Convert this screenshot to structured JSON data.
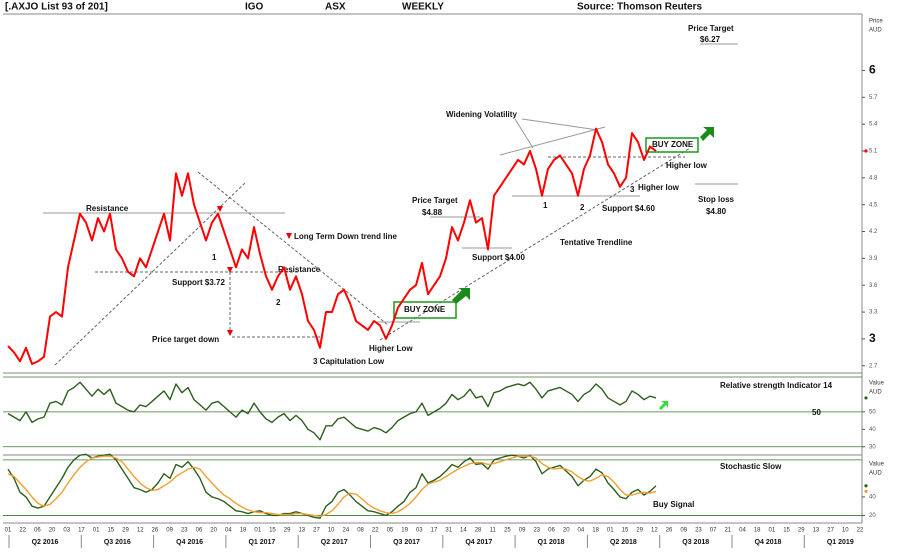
{
  "header": [
    "[.AXJO List 93 of 201]",
    "IGO",
    "ASX",
    "WEEKLY",
    "Source: Thomson Reuters"
  ],
  "x_axis": {
    "day_labels": [
      "01",
      "22",
      "06",
      "20",
      "03",
      "17",
      "01",
      "15",
      "29",
      "12",
      "26",
      "09",
      "23",
      "06",
      "20",
      "04",
      "18",
      "01",
      "15",
      "29",
      "13",
      "27",
      "10",
      "24",
      "08",
      "22",
      "05",
      "19",
      "03",
      "17",
      "31",
      "14",
      "28",
      "11",
      "25",
      "09",
      "23",
      "06",
      "20",
      "04",
      "18",
      "01",
      "15",
      "29",
      "12",
      "26",
      "09",
      "23",
      "07",
      "21",
      "04",
      "18",
      "01",
      "15",
      "29",
      "13",
      "27",
      "10",
      "22"
    ],
    "quarter_labels": [
      "Q2 2016",
      "Q3 2016",
      "Q4 2016",
      "Q1 2017",
      "Q2 2017",
      "Q3 2017",
      "Q4 2017",
      "Q1 2018",
      "Q2 2018",
      "Q3 2018",
      "Q4 2018",
      "Q1 2019"
    ]
  },
  "chart_data": [
    {
      "type": "line",
      "y_label": [
        "Price",
        "AUD"
      ],
      "ylim": [
        2.63,
        6.62
      ],
      "yticks": [
        2.7,
        3,
        3.3,
        3.6,
        3.9,
        4.2,
        4.5,
        4.8,
        5.1,
        5.4,
        5.7,
        6
      ],
      "series": [
        {
          "color": "#ff0000",
          "values": [
            2.92,
            2.85,
            2.75,
            2.9,
            2.72,
            2.75,
            2.8,
            3.25,
            3.3,
            3.25,
            3.8,
            4.1,
            4.4,
            4.3,
            4.1,
            4.35,
            4.2,
            4.4,
            4.0,
            3.9,
            3.75,
            3.7,
            3.9,
            3.8,
            4.0,
            4.2,
            4.4,
            4.1,
            4.85,
            4.6,
            4.85,
            4.5,
            4.3,
            4.1,
            4.3,
            4.4,
            4.2,
            4.0,
            3.8,
            4.0,
            3.9,
            4.25,
            3.95,
            3.7,
            3.55,
            3.7,
            3.8,
            3.55,
            3.7,
            3.5,
            3.2,
            3.1,
            2.9,
            3.3,
            3.3,
            3.5,
            3.55,
            3.4,
            3.2,
            3.15,
            3.1,
            3.2,
            3.15,
            3.0,
            3.15,
            3.35,
            3.45,
            3.55,
            3.6,
            3.85,
            3.5,
            3.6,
            3.7,
            3.9,
            4.25,
            4.1,
            4.3,
            4.55,
            4.3,
            4.35,
            4.0,
            4.6,
            4.7,
            4.8,
            4.9,
            5.0,
            4.95,
            5.1,
            4.9,
            4.6,
            4.9,
            5.0,
            5.05,
            4.95,
            4.85,
            4.6,
            4.9,
            5.05,
            5.35,
            5.2,
            4.95,
            4.85,
            4.7,
            4.8,
            5.3,
            5.2,
            5.0,
            5.15,
            5.1
          ]
        }
      ],
      "annotations": [
        "Price Target",
        "$6.27",
        "Widening Volatility",
        "BUY ZONE",
        "Higher low",
        "Higher low",
        "Stop loss",
        "$4.80",
        "Price Target",
        "$4.88",
        "1",
        "2",
        "3",
        "Support $4.60",
        "Tentative  Trendline",
        "Support $4.00",
        "Resistance",
        "Long Term Down trend line",
        "1",
        "Resistance",
        "Support $3.72",
        "2",
        "BUY ZONE",
        "Price target down",
        "Higher Low",
        "3 Capitulation Low"
      ]
    },
    {
      "type": "line",
      "title": "Relative strength Indicator 14",
      "y_label": [
        "Value",
        "AUD"
      ],
      "ylim": [
        27,
        70
      ],
      "yticks": [
        30,
        40,
        50
      ],
      "reference_lines": [
        70,
        50,
        30
      ],
      "annotations": [
        "50"
      ],
      "series": [
        {
          "color": "#2e5e1e",
          "values": [
            49,
            47,
            45,
            50,
            44,
            46,
            47,
            55,
            56,
            54,
            62,
            64,
            67,
            63,
            59,
            63,
            60,
            63,
            55,
            53,
            51,
            50,
            54,
            53,
            56,
            59,
            62,
            57,
            66,
            61,
            64,
            57,
            54,
            51,
            55,
            56,
            53,
            50,
            47,
            51,
            49,
            55,
            50,
            46,
            44,
            47,
            49,
            45,
            48,
            45,
            40,
            38,
            34,
            42,
            42,
            46,
            47,
            44,
            41,
            40,
            39,
            41,
            40,
            38,
            41,
            45,
            47,
            49,
            50,
            55,
            48,
            50,
            52,
            55,
            60,
            57,
            59,
            63,
            58,
            59,
            53,
            61,
            62,
            64,
            65,
            66,
            65,
            67,
            63,
            58,
            62,
            63,
            64,
            62,
            60,
            56,
            60,
            62,
            66,
            63,
            58,
            56,
            54,
            56,
            62,
            60,
            57,
            59,
            58
          ]
        }
      ]
    },
    {
      "type": "line",
      "title": "Stochastic Slow",
      "y_label": [
        "Value",
        "AUD"
      ],
      "ylim": [
        14,
        82
      ],
      "yticks": [
        20,
        40
      ],
      "reference_lines": [
        80,
        20
      ],
      "annotations": [
        "Buy Signal"
      ],
      "series": [
        {
          "color": "#2e5e1e",
          "values": [
            70,
            60,
            45,
            40,
            30,
            28,
            30,
            40,
            50,
            60,
            72,
            80,
            85,
            86,
            82,
            84,
            85,
            86,
            80,
            70,
            60,
            50,
            48,
            45,
            48,
            55,
            65,
            60,
            75,
            72,
            78,
            70,
            60,
            45,
            40,
            38,
            35,
            30,
            25,
            24,
            22,
            24,
            25,
            22,
            20,
            20,
            22,
            22,
            24,
            22,
            20,
            18,
            17,
            30,
            35,
            45,
            48,
            42,
            35,
            30,
            25,
            24,
            22,
            20,
            24,
            30,
            35,
            45,
            50,
            65,
            55,
            58,
            62,
            68,
            75,
            72,
            78,
            82,
            75,
            76,
            70,
            80,
            82,
            84,
            85,
            84,
            82,
            85,
            78,
            65,
            70,
            72,
            74,
            68,
            62,
            52,
            58,
            62,
            70,
            66,
            55,
            48,
            40,
            38,
            45,
            48,
            42,
            46,
            52
          ]
        },
        {
          "color": "#f0a030",
          "values": [
            65,
            62,
            55,
            48,
            40,
            33,
            30,
            32,
            38,
            45,
            55,
            64,
            72,
            78,
            82,
            83,
            84,
            84,
            82,
            78,
            70,
            62,
            55,
            50,
            47,
            48,
            52,
            56,
            62,
            66,
            70,
            72,
            70,
            62,
            55,
            48,
            42,
            38,
            33,
            29,
            26,
            24,
            23,
            23,
            22,
            21,
            21,
            21,
            22,
            22,
            21,
            20,
            19,
            21,
            25,
            32,
            40,
            44,
            43,
            38,
            32,
            28,
            25,
            23,
            22,
            24,
            28,
            33,
            40,
            48,
            54,
            56,
            58,
            62,
            66,
            70,
            73,
            76,
            77,
            77,
            75,
            76,
            78,
            80,
            82,
            84,
            84,
            84,
            82,
            76,
            72,
            70,
            71,
            70,
            67,
            62,
            58,
            57,
            60,
            64,
            62,
            56,
            48,
            42,
            42,
            44,
            45,
            44,
            46
          ]
        }
      ]
    }
  ]
}
